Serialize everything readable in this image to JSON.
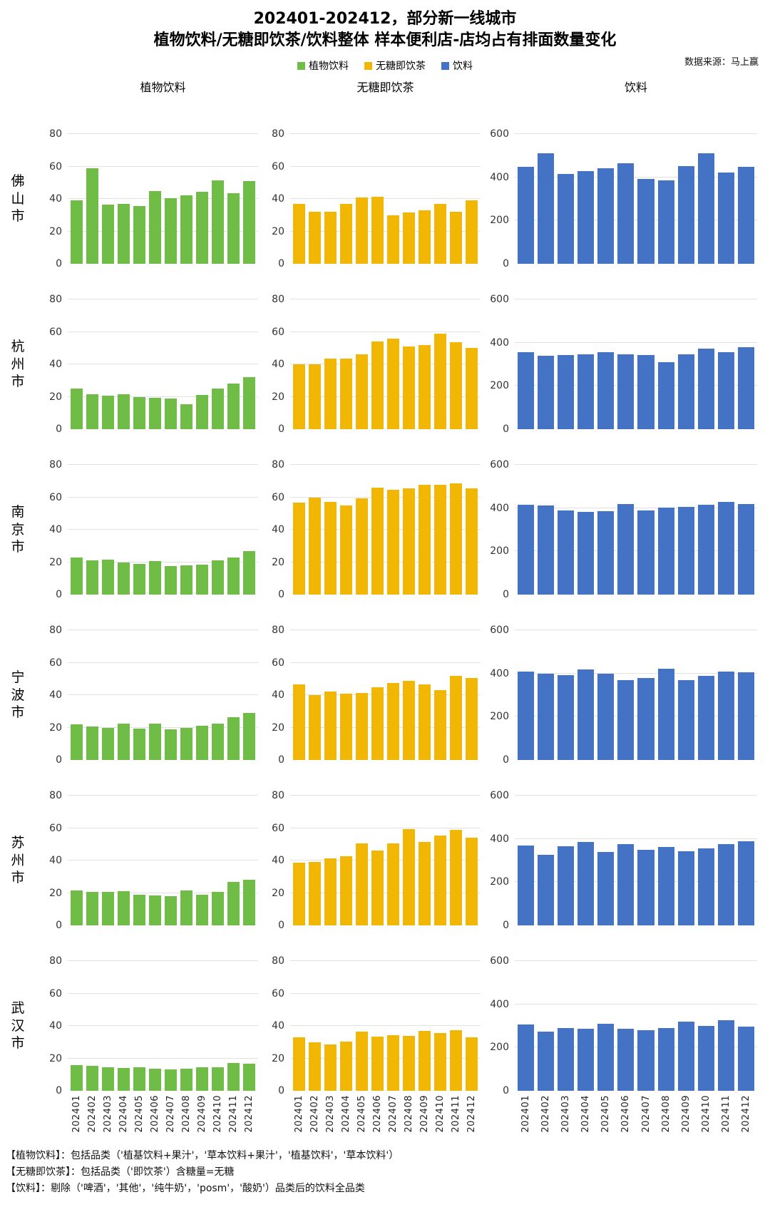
{
  "title_line1": "202401-202412，部分新一线城市",
  "title_line2": "植物饮料/无糖即饮茶/饮料整体 样本便利店-店均占有排面数量变化",
  "source": "数据来源：马上赢",
  "legend": [
    {
      "label": "植物饮料",
      "color": "#6fbc46"
    },
    {
      "label": "无糖即饮茶",
      "color": "#f2b705"
    },
    {
      "label": "饮料",
      "color": "#4472c4"
    }
  ],
  "columns": [
    {
      "title": "植物饮料",
      "color": "#6fbc46",
      "ymax": 80,
      "ticks": [
        0,
        20,
        40,
        60,
        80
      ]
    },
    {
      "title": "无糖即饮茶",
      "color": "#f2b705",
      "ymax": 80,
      "ticks": [
        0,
        20,
        40,
        60,
        80
      ]
    },
    {
      "title": "饮料",
      "color": "#4472c4",
      "ymax": 600,
      "ticks": [
        0,
        200,
        400,
        600
      ]
    }
  ],
  "chart_data": {
    "type": "bar",
    "title": "202401-202412，部分新一线城市 植物饮料/无糖即饮茶/饮料整体 样本便利店-店均占有排面数量变化",
    "categories": [
      "202401",
      "202402",
      "202403",
      "202404",
      "202405",
      "202406",
      "202407",
      "202408",
      "202409",
      "202410",
      "202411",
      "202412"
    ],
    "grid": true,
    "legend_position": "top",
    "small_ylim": [
      0,
      80
    ],
    "large_ylim": [
      0,
      600
    ],
    "rows": [
      {
        "city": "佛山市",
        "series": [
          {
            "name": "植物饮料",
            "values": [
              39,
              59,
              36.5,
              37,
              35.5,
              45,
              40.5,
              42,
              44.5,
              51.5,
              43.5,
              51
            ]
          },
          {
            "name": "无糖即饮茶",
            "values": [
              37,
              32,
              32,
              37,
              41,
              41.5,
              30,
              31.5,
              33,
              37,
              32,
              39
            ]
          },
          {
            "name": "饮料",
            "values": [
              450,
              510,
              415,
              430,
              442,
              465,
              392,
              386,
              452,
              512,
              423,
              447
            ]
          }
        ]
      },
      {
        "city": "杭州市",
        "series": [
          {
            "name": "植物饮料",
            "values": [
              25,
              21.5,
              20.5,
              21.5,
              20,
              19.5,
              19,
              15.5,
              21,
              25,
              28,
              32
            ]
          },
          {
            "name": "无糖即饮茶",
            "values": [
              40,
              40,
              43.5,
              43.5,
              46,
              54,
              56,
              51,
              52,
              59,
              53.5,
              50
            ]
          },
          {
            "name": "饮料",
            "values": [
              355,
              340,
              342,
              345,
              355,
              347,
              342,
              310,
              345,
              372,
              355,
              378
            ]
          }
        ]
      },
      {
        "city": "南京市",
        "series": [
          {
            "name": "植物饮料",
            "values": [
              23,
              21,
              21.5,
              20,
              19,
              20.5,
              17.5,
              18,
              18.5,
              21,
              23,
              27
            ]
          },
          {
            "name": "无糖即饮茶",
            "values": [
              56.5,
              60,
              57,
              55,
              59.5,
              66,
              64.5,
              65.5,
              67.5,
              67.5,
              68.5,
              65.5
            ]
          },
          {
            "name": "饮料",
            "values": [
              415,
              413,
              388,
              382,
              386,
              420,
              388,
              403,
              406,
              415,
              428,
              420
            ]
          }
        ]
      },
      {
        "city": "宁波市",
        "series": [
          {
            "name": "植物饮料",
            "values": [
              22,
              20.5,
              20,
              22.5,
              19.5,
              22.5,
              19,
              20,
              21,
              22.5,
              26.5,
              29
            ]
          },
          {
            "name": "无糖即饮茶",
            "values": [
              46.5,
              40,
              42,
              41,
              41.5,
              45,
              47.5,
              49,
              46.5,
              43,
              52,
              50.5
            ]
          },
          {
            "name": "饮料",
            "values": [
              408,
              398,
              393,
              420,
              400,
              368,
              378,
              422,
              370,
              390,
              410,
              405
            ]
          }
        ]
      },
      {
        "city": "苏州市",
        "series": [
          {
            "name": "植物饮料",
            "values": [
              21.5,
              20.5,
              20.5,
              21,
              19,
              18.5,
              18,
              21.5,
              19,
              20.5,
              27,
              28
            ]
          },
          {
            "name": "无糖即饮茶",
            "values": [
              38.5,
              39,
              41.5,
              42.5,
              50.5,
              46,
              50.5,
              59.5,
              51.5,
              55.5,
              59,
              54
            ]
          },
          {
            "name": "饮料",
            "values": [
              370,
              325,
              365,
              385,
              340,
              375,
              348,
              362,
              342,
              355,
              375,
              390
            ]
          }
        ]
      },
      {
        "city": "武汉市",
        "series": [
          {
            "name": "植物饮料",
            "values": [
              16,
              15.5,
              14.5,
              14,
              14.5,
              13.5,
              13,
              13.5,
              14.5,
              14.5,
              17,
              16.5
            ]
          },
          {
            "name": "无糖即饮茶",
            "values": [
              33,
              30,
              28.5,
              30.5,
              36.5,
              33.5,
              34.5,
              34,
              37,
              35.5,
              37.5,
              33
            ]
          },
          {
            "name": "饮料",
            "values": [
              305,
              275,
              290,
              287,
              310,
              288,
              280,
              290,
              320,
              300,
              325,
              297
            ]
          }
        ]
      }
    ]
  },
  "notes": [
    "【植物饮料】：包括品类（'植基饮料+果汁'，'草本饮料+果汁'，'植基饮料'，'草本饮料'）",
    "【无糖即饮茶】：包括品类（'即饮茶'）含糖量=无糖",
    "【饮料】：剔除（'啤酒'，'其他'，'纯牛奶'，'posm'，'酸奶'）品类后的饮料全品类"
  ]
}
